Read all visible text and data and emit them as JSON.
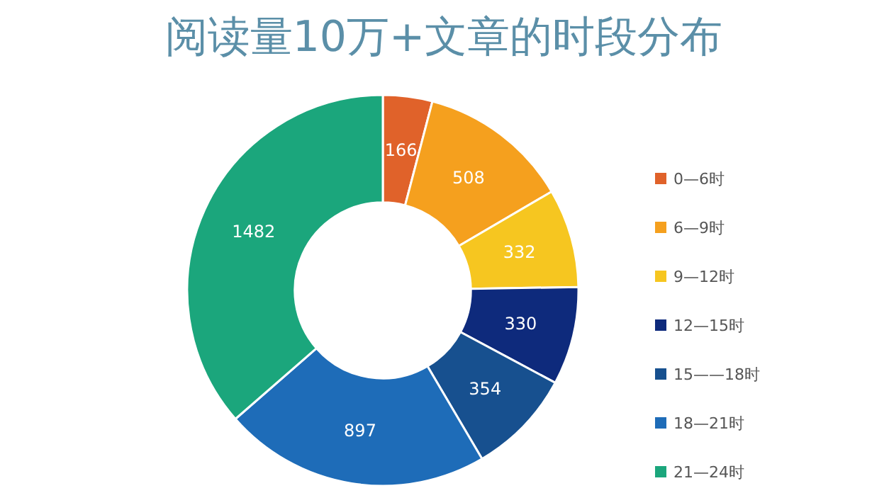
{
  "chart_data": {
    "type": "donut",
    "title": "阅读量10万+文章的时段分布",
    "categories": [
      "0—6时",
      "6—9时",
      "9—12时",
      "12—15时",
      "15——18时",
      "18—21时",
      "21—24时"
    ],
    "values": [
      166,
      508,
      332,
      330,
      354,
      897,
      1482
    ],
    "colors": [
      "#e0622a",
      "#f5a01e",
      "#f6c620",
      "#0e2a7c",
      "#17508f",
      "#1e6cb8",
      "#1ba67c"
    ],
    "data_labels": true,
    "legend": "right"
  }
}
